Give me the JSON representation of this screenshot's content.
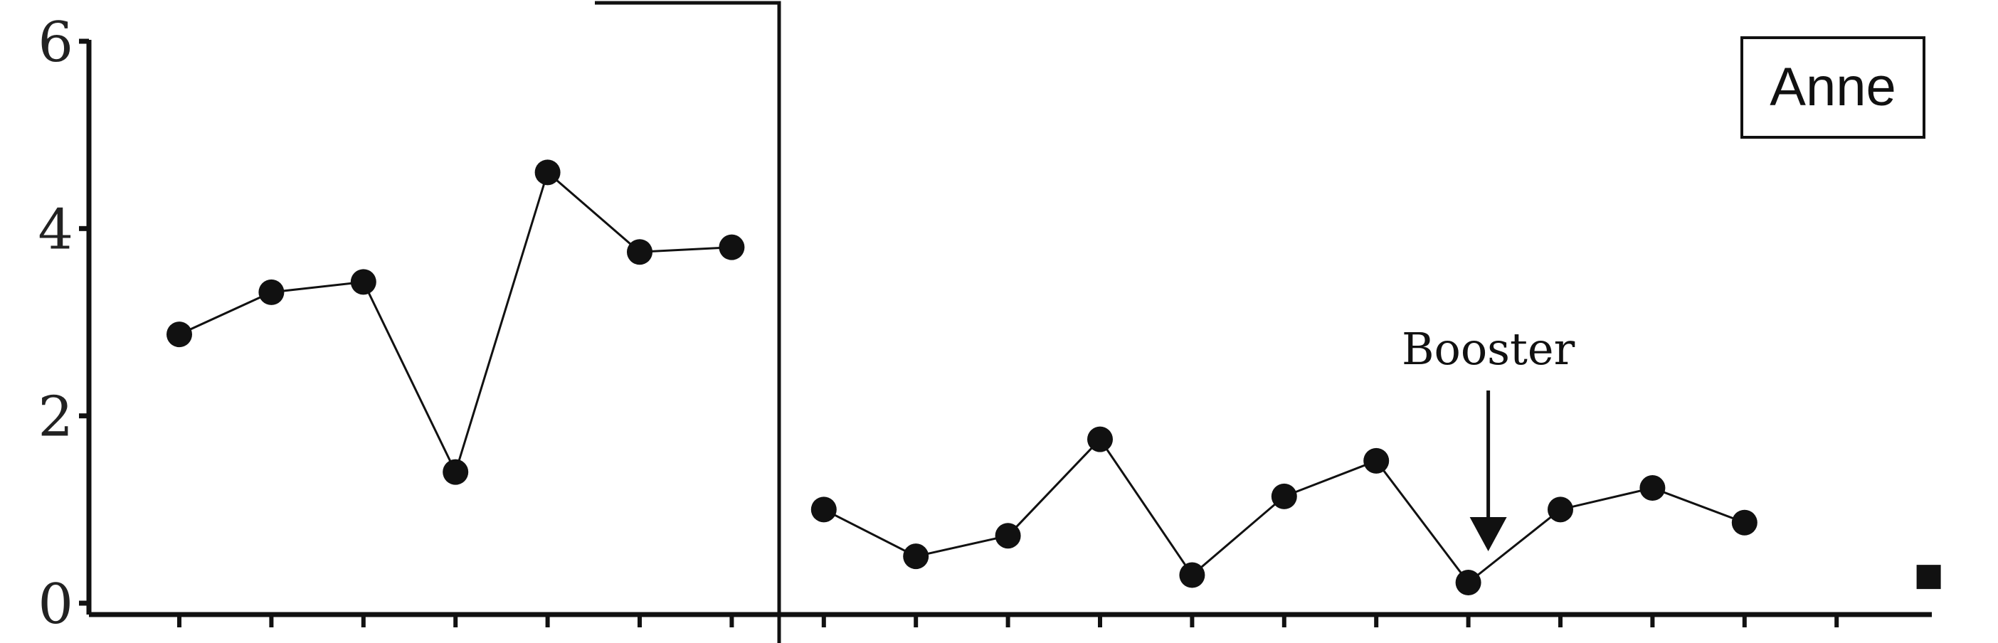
{
  "chart_data": {
    "type": "line",
    "ylim": [
      0,
      6
    ],
    "yticks": [
      "0",
      "2",
      "4",
      "6"
    ],
    "x_count": 19,
    "grid": false,
    "legend": {
      "label": "Anne",
      "placement": "top-right"
    },
    "annotation": {
      "label": "Booster",
      "x": 15,
      "y": 0.22
    },
    "phase_change_after_x": 7,
    "series": [
      {
        "phase": "baseline",
        "x": [
          1,
          2,
          3,
          4,
          5,
          6,
          7
        ],
        "values": [
          2.87,
          3.32,
          3.43,
          1.4,
          4.6,
          3.75,
          3.8
        ]
      },
      {
        "phase": "intervention",
        "x": [
          8,
          9,
          10,
          11,
          12,
          13,
          14,
          15,
          16,
          17,
          18
        ],
        "values": [
          1.0,
          0.5,
          0.72,
          1.75,
          0.3,
          1.14,
          1.52,
          0.22,
          1.0,
          1.23,
          0.86
        ]
      },
      {
        "phase": "end",
        "marker": "square",
        "x": [
          20
        ],
        "values": [
          0.28
        ]
      }
    ],
    "colors": {
      "ink": "#111111",
      "background": "#ffffff"
    }
  }
}
